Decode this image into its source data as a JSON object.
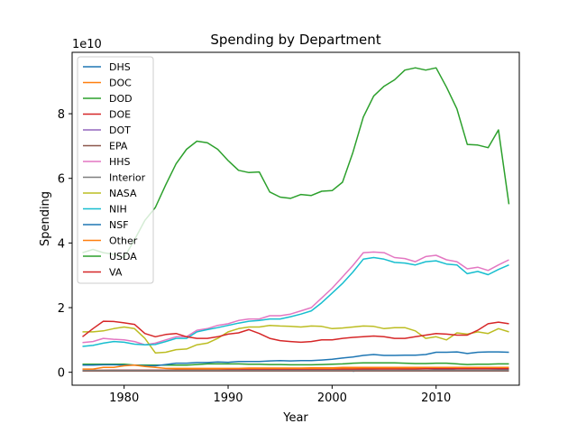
{
  "chart_data": {
    "type": "line",
    "title": "Spending by Department",
    "xlabel": "Year",
    "ylabel": "Spending",
    "y_offset_label": "1e10",
    "y_unit_scale": 10000000000.0,
    "xlim": [
      1975.0,
      2018.0
    ],
    "ylim": [
      -0.4,
      9.9
    ],
    "xticks": [
      1980,
      1990,
      2000,
      2010
    ],
    "yticks": [
      0,
      2,
      4,
      6,
      8
    ],
    "grid": false,
    "legend_position": "upper-left",
    "x": [
      1976,
      1977,
      1978,
      1979,
      1980,
      1981,
      1982,
      1983,
      1984,
      1985,
      1986,
      1987,
      1988,
      1989,
      1990,
      1991,
      1992,
      1993,
      1994,
      1995,
      1996,
      1997,
      1998,
      1999,
      2000,
      2001,
      2002,
      2003,
      2004,
      2005,
      2006,
      2007,
      2008,
      2009,
      2010,
      2011,
      2012,
      2013,
      2014,
      2015,
      2016,
      2017
    ],
    "series": [
      {
        "name": "DHS",
        "color": "#1f77b4",
        "values": [
          null,
          null,
          null,
          null,
          null,
          null,
          null,
          null,
          null,
          null,
          null,
          null,
          null,
          null,
          null,
          null,
          null,
          null,
          null,
          null,
          null,
          null,
          null,
          null,
          null,
          null,
          0.03,
          0.08,
          0.1,
          0.12,
          0.11,
          0.1,
          0.1,
          0.11,
          0.09,
          0.08,
          0.06,
          0.06,
          0.06,
          0.06,
          0.07,
          0.07
        ]
      },
      {
        "name": "DOC",
        "color": "#ff7f0e",
        "values": [
          0.05,
          0.05,
          0.06,
          0.06,
          0.06,
          0.06,
          0.06,
          0.07,
          0.07,
          0.08,
          0.08,
          0.08,
          0.09,
          0.09,
          0.09,
          0.09,
          0.1,
          0.1,
          0.11,
          0.11,
          0.11,
          0.11,
          0.11,
          0.11,
          0.11,
          0.12,
          0.12,
          0.12,
          0.12,
          0.12,
          0.12,
          0.12,
          0.12,
          0.13,
          0.13,
          0.13,
          0.12,
          0.12,
          0.12,
          0.12,
          0.12,
          0.12
        ]
      },
      {
        "name": "DOD",
        "color": "#2ca02c",
        "values": [
          0.25,
          0.25,
          0.25,
          0.25,
          0.25,
          0.22,
          0.22,
          0.22,
          0.22,
          0.22,
          0.22,
          0.24,
          0.26,
          0.26,
          0.26,
          0.26,
          0.25,
          0.25,
          0.24,
          0.24,
          0.23,
          0.23,
          0.23,
          0.24,
          0.25,
          0.26,
          0.28,
          0.29,
          0.29,
          0.29,
          0.29,
          0.28,
          0.27,
          0.27,
          0.28,
          0.28,
          0.26,
          0.24,
          0.25,
          0.25,
          0.26,
          0.26
        ]
      },
      {
        "name": "DOE",
        "color": "#d62728",
        "values": [
          0.05,
          0.06,
          0.06,
          0.07,
          0.07,
          0.07,
          0.07,
          0.07,
          0.07,
          0.07,
          0.07,
          0.07,
          0.07,
          0.07,
          0.08,
          0.08,
          0.08,
          0.08,
          0.08,
          0.08,
          0.08,
          0.08,
          0.08,
          0.08,
          0.08,
          0.09,
          0.09,
          0.1,
          0.1,
          0.1,
          0.1,
          0.1,
          0.1,
          0.11,
          0.11,
          0.11,
          0.11,
          0.11,
          0.11,
          0.11,
          0.11,
          0.11
        ]
      },
      {
        "name": "DOT",
        "color": "#9467bd",
        "values": [
          0.05,
          0.05,
          0.05,
          0.05,
          0.05,
          0.05,
          0.05,
          0.05,
          0.05,
          0.05,
          0.05,
          0.05,
          0.05,
          0.05,
          0.05,
          0.05,
          0.05,
          0.05,
          0.05,
          0.05,
          0.05,
          0.05,
          0.05,
          0.05,
          0.05,
          0.05,
          0.05,
          0.05,
          0.05,
          0.05,
          0.05,
          0.05,
          0.05,
          0.05,
          0.05,
          0.05,
          0.05,
          0.05,
          0.05,
          0.05,
          0.05,
          0.05
        ]
      },
      {
        "name": "EPA",
        "color": "#8c564b",
        "values": [
          0.04,
          0.04,
          0.04,
          0.04,
          0.04,
          0.04,
          0.04,
          0.04,
          0.04,
          0.04,
          0.04,
          0.04,
          0.04,
          0.04,
          0.04,
          0.04,
          0.04,
          0.04,
          0.04,
          0.04,
          0.04,
          0.04,
          0.04,
          0.04,
          0.04,
          0.04,
          0.04,
          0.04,
          0.04,
          0.04,
          0.04,
          0.04,
          0.04,
          0.04,
          0.04,
          0.04,
          0.04,
          0.04,
          0.04,
          0.04,
          0.04,
          0.04
        ]
      },
      {
        "name": "HHS",
        "color": "#e377c2",
        "values": [
          0.92,
          0.95,
          1.05,
          1.02,
          1.0,
          0.95,
          0.85,
          0.9,
          1.0,
          1.1,
          1.1,
          1.3,
          1.35,
          1.45,
          1.5,
          1.6,
          1.65,
          1.65,
          1.75,
          1.75,
          1.8,
          1.9,
          2.0,
          2.3,
          2.6,
          2.95,
          3.3,
          3.7,
          3.72,
          3.7,
          3.55,
          3.52,
          3.42,
          3.58,
          3.62,
          3.48,
          3.42,
          3.2,
          3.25,
          3.15,
          3.32,
          3.48
        ]
      },
      {
        "name": "Interior",
        "color": "#7f7f7f",
        "values": [
          0.06,
          0.06,
          0.06,
          0.06,
          0.06,
          0.06,
          0.06,
          0.06,
          0.06,
          0.06,
          0.06,
          0.06,
          0.06,
          0.06,
          0.06,
          0.06,
          0.06,
          0.06,
          0.06,
          0.06,
          0.06,
          0.06,
          0.06,
          0.06,
          0.06,
          0.06,
          0.06,
          0.06,
          0.06,
          0.06,
          0.06,
          0.06,
          0.06,
          0.06,
          0.06,
          0.06,
          0.06,
          0.06,
          0.06,
          0.06,
          0.06,
          0.06
        ]
      },
      {
        "name": "NASA",
        "color": "#bcbd22",
        "values": [
          1.25,
          1.25,
          1.28,
          1.35,
          1.4,
          1.35,
          1.05,
          0.6,
          0.62,
          0.7,
          0.72,
          0.85,
          0.9,
          1.05,
          1.25,
          1.35,
          1.4,
          1.4,
          1.45,
          1.43,
          1.42,
          1.4,
          1.43,
          1.42,
          1.35,
          1.37,
          1.4,
          1.43,
          1.42,
          1.35,
          1.38,
          1.38,
          1.28,
          1.05,
          1.1,
          1.0,
          1.22,
          1.18,
          1.25,
          1.2,
          1.35,
          1.25
        ]
      },
      {
        "name": "NIH",
        "color": "#17becf",
        "values": [
          0.8,
          0.83,
          0.9,
          0.95,
          0.93,
          0.87,
          0.85,
          0.86,
          0.95,
          1.05,
          1.05,
          1.25,
          1.32,
          1.38,
          1.45,
          1.52,
          1.58,
          1.6,
          1.65,
          1.65,
          1.72,
          1.8,
          1.9,
          2.15,
          2.45,
          2.75,
          3.1,
          3.5,
          3.55,
          3.5,
          3.4,
          3.38,
          3.32,
          3.42,
          3.45,
          3.35,
          3.32,
          3.05,
          3.12,
          3.02,
          3.18,
          3.32
        ]
      },
      {
        "name": "NSF",
        "color": "#1f77b4",
        "values": [
          0.22,
          0.22,
          0.23,
          0.23,
          0.22,
          0.22,
          0.2,
          0.2,
          0.24,
          0.28,
          0.28,
          0.3,
          0.3,
          0.32,
          0.31,
          0.33,
          0.33,
          0.33,
          0.35,
          0.36,
          0.35,
          0.36,
          0.36,
          0.38,
          0.4,
          0.44,
          0.47,
          0.52,
          0.55,
          0.52,
          0.52,
          0.53,
          0.53,
          0.55,
          0.62,
          0.62,
          0.63,
          0.58,
          0.62,
          0.63,
          0.63,
          0.62
        ]
      },
      {
        "name": "Other",
        "color": "#ff7f0e",
        "values": [
          0.1,
          0.1,
          0.15,
          0.15,
          0.2,
          0.22,
          0.18,
          0.15,
          0.12,
          0.12,
          0.12,
          0.12,
          0.12,
          0.12,
          0.12,
          0.12,
          0.13,
          0.13,
          0.13,
          0.13,
          0.13,
          0.13,
          0.14,
          0.14,
          0.14,
          0.15,
          0.15,
          0.15,
          0.15,
          0.15,
          0.15,
          0.15,
          0.15,
          0.15,
          0.15,
          0.15,
          0.15,
          0.15,
          0.15,
          0.15,
          0.15,
          0.15
        ]
      },
      {
        "name": "USDA",
        "color": "#2ca02c",
        "values": [
          3.7,
          3.8,
          3.7,
          3.65,
          3.55,
          4.1,
          4.7,
          5.1,
          5.8,
          6.45,
          6.9,
          7.15,
          7.1,
          6.9,
          6.55,
          6.25,
          6.18,
          6.2,
          5.58,
          5.42,
          5.38,
          5.5,
          5.47,
          5.6,
          5.62,
          5.88,
          6.8,
          7.9,
          8.55,
          8.85,
          9.05,
          9.35,
          9.42,
          9.35,
          9.42,
          8.82,
          8.15,
          7.05,
          7.03,
          6.95,
          7.5,
          5.2
        ]
      },
      {
        "name": "VA",
        "color": "#d62728",
        "values": [
          1.1,
          1.35,
          1.58,
          1.57,
          1.53,
          1.48,
          1.2,
          1.1,
          1.17,
          1.2,
          1.1,
          1.05,
          1.05,
          1.1,
          1.18,
          1.22,
          1.32,
          1.2,
          1.05,
          0.98,
          0.95,
          0.93,
          0.95,
          1.0,
          1.0,
          1.05,
          1.08,
          1.1,
          1.12,
          1.1,
          1.05,
          1.05,
          1.1,
          1.15,
          1.2,
          1.18,
          1.15,
          1.15,
          1.3,
          1.5,
          1.55,
          1.5
        ]
      }
    ]
  }
}
